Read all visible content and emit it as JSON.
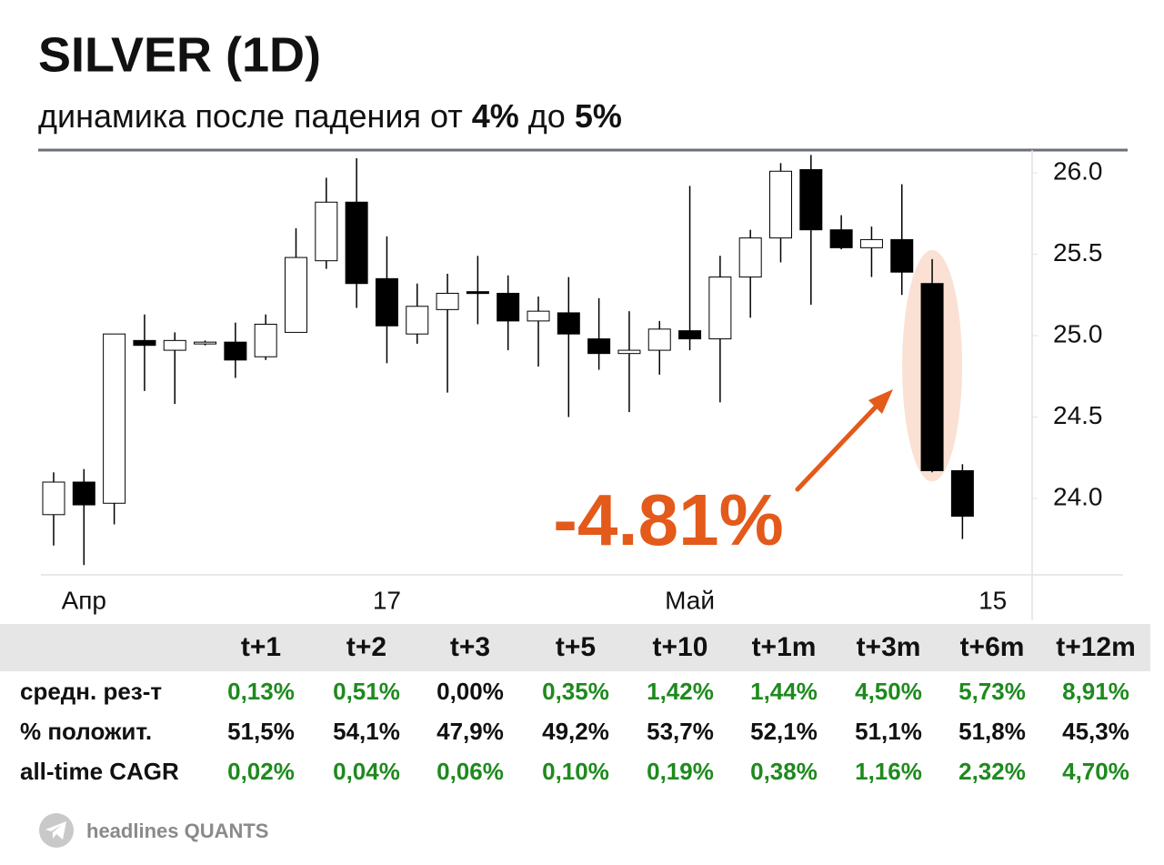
{
  "chart_data": {
    "type": "candlestick",
    "title": "SILVER (1D)",
    "subtitle": [
      "динамика после падения от ",
      "4%",
      " до ",
      "5%"
    ],
    "annotation": "-4.81%",
    "annotation_color": "#e35a1a",
    "up_color": "#ffffff",
    "down_color": "#000000",
    "open": [
      23.9,
      24.1,
      23.97,
      24.97,
      24.91,
      24.95,
      24.96,
      24.87,
      25.02,
      25.46,
      25.82,
      25.35,
      25.01,
      25.16,
      25.27,
      25.26,
      25.09,
      25.14,
      24.98,
      24.89,
      24.91,
      25.03,
      24.98,
      25.36,
      25.6,
      26.02,
      25.65,
      25.54,
      25.59,
      25.32,
      24.17
    ],
    "high": [
      24.16,
      24.18,
      25.01,
      25.13,
      25.02,
      24.97,
      25.08,
      25.13,
      25.66,
      25.97,
      26.09,
      25.61,
      25.32,
      25.38,
      25.49,
      25.37,
      25.24,
      25.36,
      25.23,
      25.15,
      25.09,
      25.92,
      25.49,
      25.65,
      26.06,
      26.11,
      25.74,
      25.67,
      25.93,
      25.47,
      24.21
    ],
    "low": [
      23.71,
      23.59,
      23.84,
      24.66,
      24.58,
      24.94,
      24.74,
      24.85,
      25.02,
      25.41,
      25.17,
      24.83,
      24.95,
      24.65,
      25.07,
      24.91,
      24.81,
      24.5,
      24.79,
      24.53,
      24.76,
      24.91,
      24.59,
      25.11,
      25.45,
      25.19,
      25.53,
      25.36,
      25.25,
      24.16,
      23.75
    ],
    "close": [
      24.1,
      23.96,
      25.01,
      24.94,
      24.97,
      24.96,
      24.85,
      25.07,
      25.48,
      25.82,
      25.32,
      25.06,
      25.18,
      25.26,
      25.26,
      25.09,
      25.15,
      25.01,
      24.89,
      24.91,
      25.04,
      24.98,
      25.36,
      25.6,
      26.01,
      25.65,
      25.54,
      25.59,
      25.39,
      24.17,
      23.89
    ],
    "xlim": [
      -0.42,
      32.3
    ],
    "xticks": [
      {
        "value": 1,
        "label": "Апр"
      },
      {
        "value": 11,
        "label": "17"
      },
      {
        "value": 21,
        "label": "Май"
      },
      {
        "value": 31,
        "label": "15"
      }
    ],
    "ylim": [
      23.53,
      26.14
    ],
    "yticks": [
      {
        "value": 24,
        "label": "24.0"
      },
      24.5,
      {
        "value": 25,
        "label": "25.0"
      },
      25.5,
      {
        "value": 26,
        "label": "26.0"
      }
    ],
    "highlight_index": 29
  },
  "table": {
    "header": [
      "t+1",
      "t+2",
      "t+3",
      "t+5",
      "t+10",
      "t+1m",
      "t+3m",
      "t+6m",
      "t+12m"
    ],
    "rows": [
      {
        "label": "средн. рез-т",
        "values": [
          "0,13%",
          "0,51%",
          "0,00%",
          "0,35%",
          "1,42%",
          "1,44%",
          "4,50%",
          "5,73%",
          "8,91%"
        ],
        "colors": [
          "#1e8a1e",
          "#1e8a1e",
          "#111111",
          "#1e8a1e",
          "#1e8a1e",
          "#1e8a1e",
          "#1e8a1e",
          "#1e8a1e",
          "#1e8a1e"
        ]
      },
      {
        "label": "% положит.",
        "values": [
          "51,5%",
          "54,1%",
          "47,9%",
          "49,2%",
          "53,7%",
          "52,1%",
          "51,1%",
          "51,8%",
          "45,3%"
        ],
        "colors": [
          "#111111",
          "#111111",
          "#111111",
          "#111111",
          "#111111",
          "#111111",
          "#111111",
          "#111111",
          "#111111"
        ]
      },
      {
        "label": "all-time CAGR",
        "values": [
          "0,02%",
          "0,04%",
          "0,06%",
          "0,10%",
          "0,19%",
          "0,38%",
          "1,16%",
          "2,32%",
          "4,70%"
        ],
        "colors": [
          "#1e8a1e",
          "#1e8a1e",
          "#1e8a1e",
          "#1e8a1e",
          "#1e8a1e",
          "#1e8a1e",
          "#1e8a1e",
          "#1e8a1e",
          "#1e8a1e"
        ]
      }
    ]
  },
  "footer": "headlines QUANTS"
}
